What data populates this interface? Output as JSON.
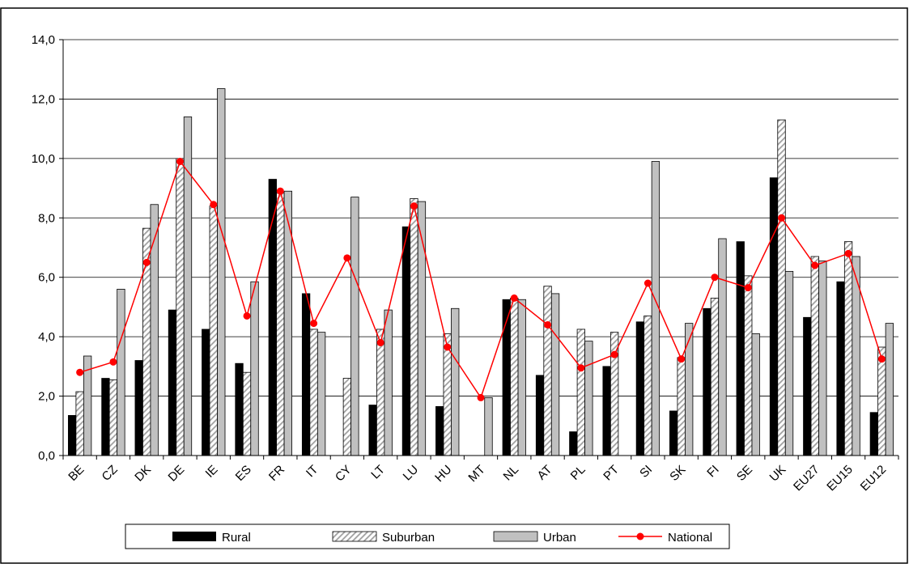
{
  "chart_data": {
    "type": "bar",
    "categories": [
      "BE",
      "CZ",
      "DK",
      "DE",
      "IE",
      "ES",
      "FR",
      "IT",
      "CY",
      "LT",
      "LU",
      "HU",
      "MT",
      "NL",
      "AT",
      "PL",
      "PT",
      "SI",
      "SK",
      "FI",
      "SE",
      "UK",
      "EU27",
      "EU15",
      "EU12"
    ],
    "series": [
      {
        "name": "Rural",
        "kind": "bar",
        "color": "#000000",
        "values": [
          1.35,
          2.6,
          3.2,
          4.9,
          4.25,
          3.1,
          9.3,
          5.45,
          null,
          1.7,
          7.7,
          1.65,
          null,
          5.25,
          2.7,
          0.8,
          3.0,
          4.5,
          1.5,
          4.95,
          7.2,
          9.35,
          4.65,
          5.85,
          1.45
        ]
      },
      {
        "name": "Suburban",
        "kind": "bar",
        "color": "#ffffff",
        "pattern": "diagonal-hatch",
        "values": [
          2.15,
          2.55,
          7.65,
          10.0,
          8.4,
          2.8,
          8.85,
          4.25,
          2.6,
          4.25,
          8.65,
          4.1,
          null,
          5.3,
          5.7,
          4.25,
          4.15,
          4.7,
          3.3,
          5.3,
          6.05,
          11.3,
          6.7,
          7.2,
          3.65
        ]
      },
      {
        "name": "Urban",
        "kind": "bar",
        "color": "#c0c0c0",
        "values": [
          3.35,
          5.6,
          8.45,
          11.4,
          12.35,
          5.85,
          8.9,
          4.15,
          8.7,
          4.9,
          8.55,
          4.95,
          1.95,
          5.25,
          5.45,
          3.85,
          null,
          9.9,
          4.45,
          7.3,
          4.1,
          6.2,
          6.55,
          6.7,
          4.45
        ]
      },
      {
        "name": "National",
        "kind": "line",
        "color": "#ff0000",
        "values": [
          2.8,
          3.15,
          6.5,
          9.9,
          8.45,
          4.7,
          8.9,
          4.45,
          6.65,
          3.8,
          8.4,
          3.65,
          1.95,
          5.3,
          4.4,
          2.95,
          3.4,
          5.8,
          3.25,
          6.0,
          5.65,
          8.0,
          6.4,
          6.8,
          3.25
        ]
      }
    ],
    "ylim": [
      0,
      14
    ],
    "yticks": [
      "0,0",
      "2,0",
      "4,0",
      "6,0",
      "8,0",
      "10,0",
      "12,0",
      "14,0"
    ],
    "xlabel": "",
    "ylabel": "",
    "grid": true,
    "legend_position": "bottom"
  }
}
